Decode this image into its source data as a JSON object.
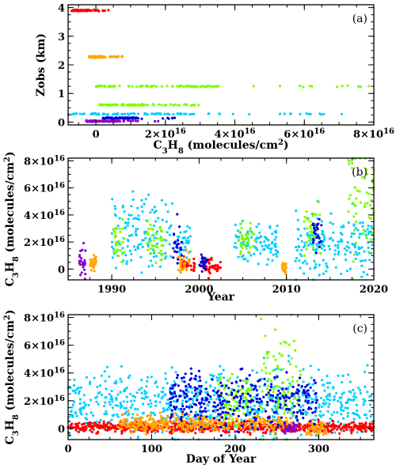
{
  "colors": {
    "red": "#ff0000",
    "orange": "#ffa500",
    "green": "#7cfc00",
    "cyan": "#00d0ff",
    "blue": "#0000e0",
    "purple": "#8b00c8"
  },
  "chart_data": [
    {
      "id": "a",
      "type": "scatter",
      "panel_label": "(a)",
      "xlabel": "C3H8 (molecules/cm2)",
      "ylabel": "Zobs (km)",
      "xlim": [
        -8000000000000000.0,
        8e+16
      ],
      "ylim": [
        -0.1,
        4.1
      ],
      "x_ticks": [
        0,
        2e+16,
        4e+16,
        6e+16,
        8e+16
      ],
      "x_tick_labels": [
        "0",
        "2×10",
        "4×10",
        "6×10",
        "8×10"
      ],
      "x_tick_exponent": "16",
      "y_ticks": [
        0,
        1,
        2,
        3,
        4
      ],
      "y_tick_labels": [
        "0",
        "1",
        "2",
        "3",
        "4"
      ],
      "series": [
        {
          "color": "red",
          "y": 3.9,
          "x_range": [
            -7000000000000000.0,
            4000000000000000.0
          ]
        },
        {
          "color": "orange",
          "y": 2.28,
          "x_range": [
            -2000000000000000.0,
            8000000000000000.0
          ]
        },
        {
          "color": "green",
          "y": 1.25,
          "x_range": [
            0,
            8e+16
          ]
        },
        {
          "color": "green",
          "y": 0.6,
          "x_range": [
            1000000000000000.0,
            3e+16
          ]
        },
        {
          "color": "cyan",
          "y": 0.28,
          "x_range": [
            -8000000000000000.0,
            7.3e+16
          ]
        },
        {
          "color": "blue",
          "y": 0.14,
          "x_range": [
            2000000000000000.0,
            2.4e+16
          ]
        },
        {
          "color": "purple",
          "y": 0.03,
          "x_range": [
            -3000000000000000.0,
            1.8e+16
          ]
        }
      ]
    },
    {
      "id": "b",
      "type": "scatter",
      "panel_label": "(b)",
      "xlabel": "Year",
      "ylabel": "C3H8 (molecules/cm2)",
      "xlim": [
        1985,
        2020
      ],
      "ylim": [
        -8000000000000000.0,
        8.2e+16
      ],
      "x_ticks": [
        1990,
        2000,
        2010,
        2020
      ],
      "x_tick_labels": [
        "1990",
        "2000",
        "2010",
        "2020"
      ],
      "y_ticks": [
        0,
        2e+16,
        4e+16,
        6e+16,
        8e+16
      ],
      "y_tick_labels": [
        "0",
        "2×10",
        "4×10",
        "6×10",
        "8×10"
      ],
      "y_tick_exponent": "16",
      "series": [
        {
          "color": "cyan",
          "clusters": [
            [
              1990,
              1997,
              2.8e+16,
              1.3e+16
            ],
            [
              1997.5,
              1999,
              1.8e+16,
              8000000000000000.0
            ],
            [
              2004,
              2009,
              2e+16,
              8000000000000000.0
            ],
            [
              2011,
              2020,
              1.8e+16,
              1.1e+16
            ]
          ]
        },
        {
          "color": "red",
          "clusters": [
            [
              1998,
              1999.5,
              3000000000000000.0,
              2500000000000000.0
            ],
            [
              2000.5,
              2002.5,
              2000000000000000.0,
              3500000000000000.0
            ]
          ]
        },
        {
          "color": "orange",
          "clusters": [
            [
              1987.5,
              1988.2,
              4000000000000000.0,
              3000000000000000.0
            ],
            [
              1997.5,
              1999,
              6000000000000000.0,
              3500000000000000.0
            ],
            [
              2009.5,
              2010,
              1000000000000000.0,
              2000000000000000.0
            ]
          ]
        },
        {
          "color": "green",
          "clusters": [
            [
              1990,
              1991.5,
              2.4e+16,
              8000000000000000.0
            ],
            [
              1994,
              1996,
              2e+16,
              8000000000000000.0
            ],
            [
              2004.5,
              2006.5,
              2.2e+16,
              6000000000000000.0
            ],
            [
              2012,
              2014,
              2.5e+16,
              1e+16
            ],
            [
              2017,
              2020,
              5e+16,
              2.2e+16
            ]
          ]
        },
        {
          "color": "blue",
          "clusters": [
            [
              1997,
              1998,
              1.8e+16,
              8000000000000000.0
            ],
            [
              2000,
              2001,
              4000000000000000.0,
              3000000000000000.0
            ],
            [
              2013,
              2014,
              2.6e+16,
              7000000000000000.0
            ]
          ]
        },
        {
          "color": "purple",
          "clusters": [
            [
              1986.3,
              1987,
              5000000000000000.0,
              5000000000000000.0
            ]
          ]
        }
      ]
    },
    {
      "id": "c",
      "type": "scatter",
      "panel_label": "(c)",
      "xlabel": "Day of Year",
      "ylabel": "C3H8 (molecules/cm2)",
      "xlim": [
        0,
        366
      ],
      "ylim": [
        -8000000000000000.0,
        8.2e+16
      ],
      "x_ticks": [
        0,
        100,
        200,
        300
      ],
      "x_tick_labels": [
        "0",
        "100",
        "200",
        "300"
      ],
      "y_ticks": [
        0,
        2e+16,
        4e+16,
        6e+16,
        8e+16
      ],
      "y_tick_labels": [
        "0",
        "2×10",
        "4×10",
        "6×10",
        "8×10"
      ],
      "y_tick_exponent": "16",
      "series": [
        {
          "color": "cyan",
          "clusters": [
            [
              0,
              366,
              1.8e+16,
              1.2e+16
            ]
          ]
        },
        {
          "color": "red",
          "clusters": [
            [
              0,
              366,
              1000000000000000.0,
              2000000000000000.0
            ]
          ]
        },
        {
          "color": "orange",
          "clusters": [
            [
              285,
              310,
              0.0,
              2500000000000000.0
            ],
            [
              60,
              270,
              4000000000000000.0,
              3000000000000000.0
            ]
          ]
        },
        {
          "color": "green",
          "clusters": [
            [
              230,
              280,
              3e+16,
              2e+16
            ],
            [
              180,
              220,
              2.2e+16,
              8000000000000000.0
            ]
          ]
        },
        {
          "color": "blue",
          "clusters": [
            [
              120,
              300,
              2e+16,
              1e+16
            ]
          ]
        },
        {
          "color": "purple",
          "clusters": [
            [
              255,
              275,
              0.0,
              2000000000000000.0
            ]
          ]
        }
      ]
    }
  ]
}
